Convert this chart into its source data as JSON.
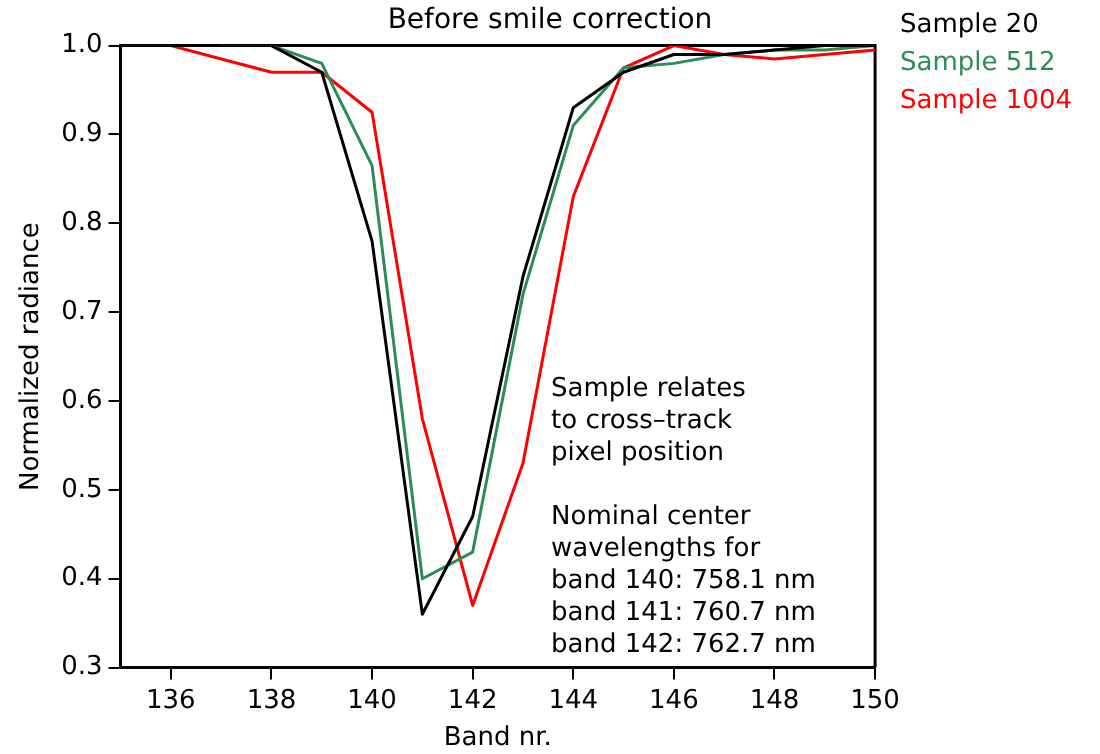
{
  "chart_data": {
    "type": "line",
    "title": "Before smile correction",
    "xlabel": "Band nr.",
    "ylabel": "Normalized radiance",
    "x": [
      135,
      136,
      137,
      138,
      139,
      140,
      141,
      142,
      143,
      144,
      145,
      146,
      147,
      148,
      149,
      150
    ],
    "series": [
      {
        "name": "Sample 20",
        "color": "#000000",
        "values": [
          1.0,
          1.0,
          1.0,
          1.0,
          0.97,
          0.78,
          0.36,
          0.47,
          0.74,
          0.93,
          0.97,
          0.99,
          0.99,
          0.995,
          1.0,
          1.0
        ]
      },
      {
        "name": "Sample 512",
        "color": "#2e8b57",
        "values": [
          null,
          null,
          1.0,
          1.0,
          0.98,
          0.865,
          0.4,
          0.43,
          0.72,
          0.91,
          0.975,
          0.98,
          0.99,
          0.995,
          0.995,
          1.0
        ]
      },
      {
        "name": "Sample 1004",
        "color": "#ff0000",
        "values": [
          1.0,
          1.0,
          0.985,
          0.97,
          0.97,
          0.925,
          0.58,
          0.37,
          0.53,
          0.83,
          0.975,
          1.0,
          0.99,
          0.985,
          0.99,
          0.995
        ]
      }
    ],
    "xlim": [
      135,
      150
    ],
    "xticks": [
      136,
      138,
      140,
      142,
      144,
      146,
      148,
      150
    ],
    "ylim": [
      0.3,
      1.0
    ],
    "yticks": [
      {
        "value": 0.3,
        "label": "0.3"
      },
      {
        "value": 0.4,
        "label": "0.4"
      },
      {
        "value": 0.5,
        "label": "0.5"
      },
      {
        "value": 0.6,
        "label": "0.6"
      },
      {
        "value": 0.7,
        "label": "0.7"
      },
      {
        "value": 0.8,
        "label": "0.8"
      },
      {
        "value": 0.9,
        "label": "0.9"
      },
      {
        "value": 1.0,
        "label": "1.0"
      }
    ],
    "annotations": [
      "Sample relates\nto cross–track\npixel position",
      "Nominal center\nwavelengths for\nband 140: 758.1 nm\nband 141: 760.7 nm\nband 142: 762.7 nm"
    ],
    "legend": "top right",
    "grid": false,
    "marker": "none",
    "line_style": "solid"
  }
}
